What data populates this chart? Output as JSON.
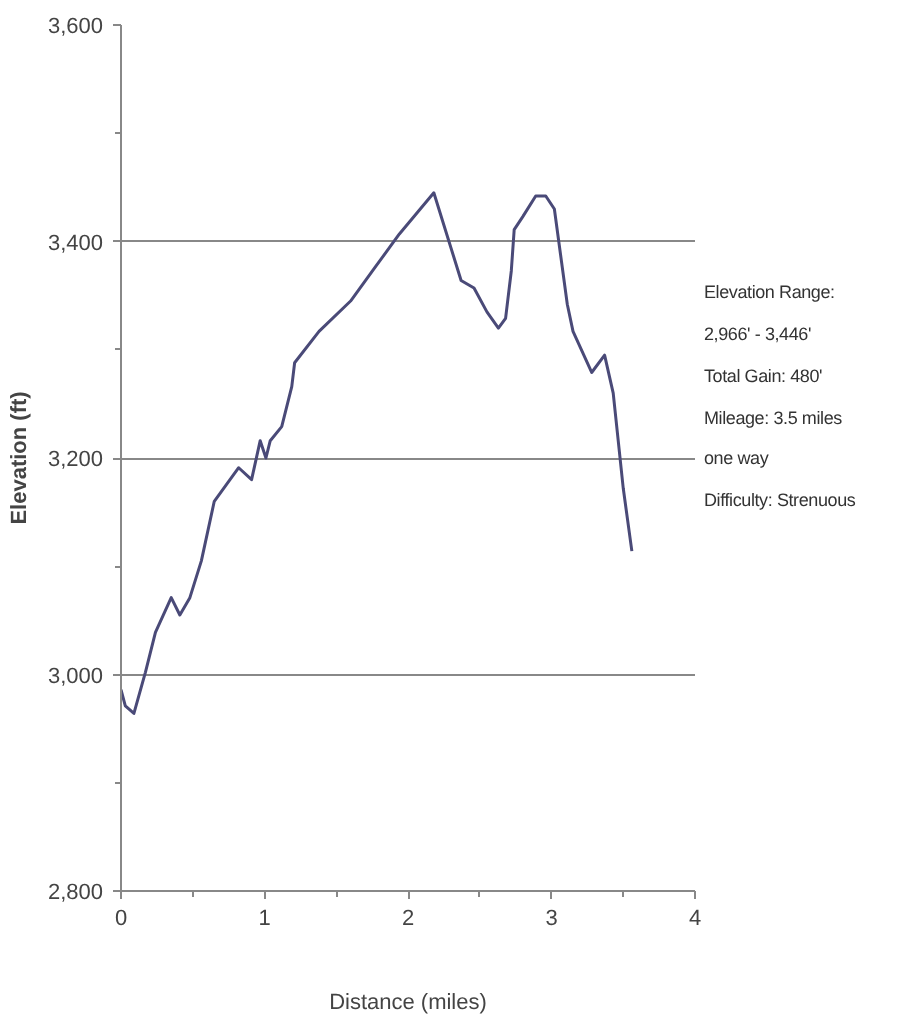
{
  "chart_data": {
    "type": "line",
    "xlabel": "Distance (miles)",
    "ylabel": "Elevation (ft)",
    "x": [
      0,
      0.03,
      0.09,
      0.17,
      0.24,
      0.35,
      0.41,
      0.48,
      0.56,
      0.65,
      0.82,
      0.91,
      0.97,
      1.01,
      1.04,
      1.12,
      1.19,
      1.21,
      1.38,
      1.6,
      1.77,
      1.94,
      2.18,
      2.37,
      2.46,
      2.55,
      2.63,
      2.68,
      2.72,
      2.74,
      2.8,
      2.89,
      2.96,
      3.02,
      3.11,
      3.15,
      3.28,
      3.37,
      3.43,
      3.5,
      3.56
    ],
    "series": [
      {
        "color": "#4a4a78",
        "values": [
          2986,
          2971,
          2964,
          3002,
          3039,
          3071,
          3055,
          3071,
          3105,
          3160,
          3191,
          3180,
          3216,
          3200,
          3216,
          3229,
          3266,
          3288,
          3317,
          3345,
          3376,
          3407,
          3445,
          3364,
          3357,
          3335,
          3320,
          3329,
          3373,
          3411,
          3423,
          3442,
          3442,
          3430,
          3342,
          3317,
          3279,
          3295,
          3260,
          3172,
          3114
        ]
      }
    ],
    "xlim": [
      0,
      4
    ],
    "ylim": [
      2800,
      3600
    ],
    "xticks": [
      0,
      1,
      2,
      3,
      4
    ],
    "yticks": [
      {
        "value": 2800,
        "label": "2,800"
      },
      {
        "value": 3000,
        "label": "3,000"
      },
      {
        "value": 3200,
        "label": "3,200"
      },
      {
        "value": 3400,
        "label": "3,400"
      },
      {
        "value": 3600,
        "label": "3,600"
      }
    ],
    "grid": "y",
    "marker": "none",
    "line_style": "solid",
    "annotations": [
      "Elevation Range:",
      "2,966' - 3,446'",
      "Total Gain: 480'",
      "Mileage: 3.5 miles",
      "one way",
      "Difficulty: Strenuous"
    ]
  }
}
